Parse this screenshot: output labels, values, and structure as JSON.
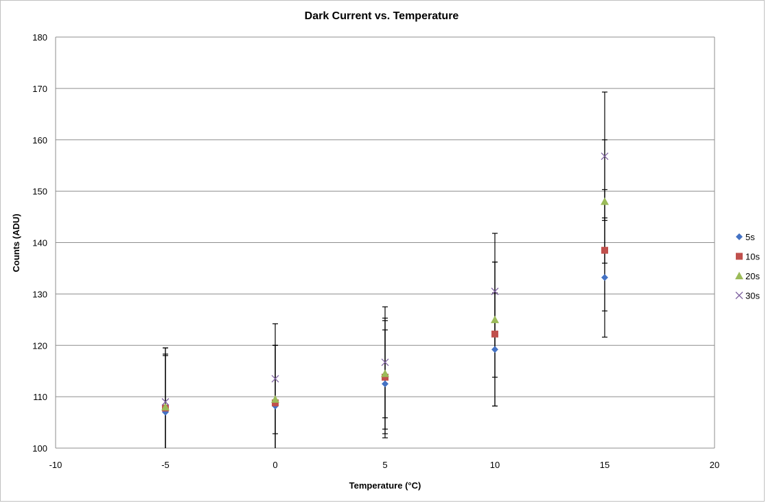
{
  "chart_data": {
    "type": "scatter",
    "title": "Dark Current  vs. Temperature",
    "xlabel": "Temperature (°C)",
    "ylabel": "Counts (ADU)",
    "xlim": [
      -10,
      20
    ],
    "ylim": [
      100,
      180
    ],
    "xticks": [
      -10,
      -5,
      0,
      5,
      10,
      15,
      20
    ],
    "yticks": [
      100,
      110,
      120,
      130,
      140,
      150,
      160,
      170,
      180
    ],
    "grid": "horizontal",
    "legend_position": "right",
    "error_bars": true,
    "series": [
      {
        "name": "5s",
        "marker": "diamond",
        "color": "#4472C4",
        "points": [
          {
            "x": -5,
            "y": 107.0,
            "err": 11.0
          },
          {
            "x": 0,
            "y": 108.2,
            "err": 11.8
          },
          {
            "x": 5,
            "y": 112.5,
            "err": 10.5
          },
          {
            "x": 10,
            "y": 119.2,
            "err": 11.0
          },
          {
            "x": 15,
            "y": 133.2,
            "err": 11.6
          }
        ]
      },
      {
        "name": "10s",
        "marker": "square",
        "color": "#C0504D",
        "points": [
          {
            "x": -5,
            "y": 107.8,
            "err": 10.5
          },
          {
            "x": 0,
            "y": 108.8,
            "err": 11.2
          },
          {
            "x": 5,
            "y": 113.8,
            "err": 11.0
          },
          {
            "x": 10,
            "y": 122.2,
            "err": 14.0
          },
          {
            "x": 15,
            "y": 138.5,
            "err": 11.8
          }
        ]
      },
      {
        "name": "20s",
        "marker": "triangle",
        "color": "#9BBB59",
        "points": [
          {
            "x": -5,
            "y": 108.0,
            "err": 11.5
          },
          {
            "x": 0,
            "y": 109.5,
            "err": 10.5
          },
          {
            "x": 5,
            "y": 114.5,
            "err": 10.8
          },
          {
            "x": 10,
            "y": 125.0,
            "err": 11.2
          },
          {
            "x": 15,
            "y": 148.0,
            "err": 12.0
          }
        ]
      },
      {
        "name": "30s",
        "marker": "x",
        "color": "#8064A2",
        "points": [
          {
            "x": -5,
            "y": 109.0,
            "err": 10.5
          },
          {
            "x": 0,
            "y": 113.5,
            "err": 10.7
          },
          {
            "x": 5,
            "y": 116.7,
            "err": 10.8
          },
          {
            "x": 10,
            "y": 130.5,
            "err": 11.3
          },
          {
            "x": 15,
            "y": 156.8,
            "err": 12.5
          }
        ]
      }
    ]
  }
}
